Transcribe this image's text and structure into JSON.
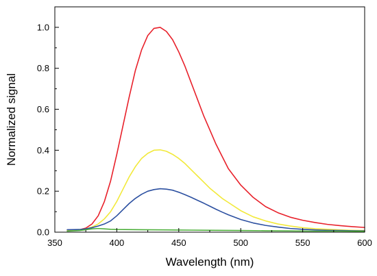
{
  "chart_data": {
    "type": "line",
    "title": "",
    "xlabel": "Wavelength (nm)",
    "ylabel": "Normalized signal",
    "xlim": [
      350,
      600
    ],
    "ylim": [
      0.0,
      1.1
    ],
    "x_ticks": [
      350,
      400,
      450,
      500,
      550,
      600
    ],
    "x_tick_labels": [
      "350",
      "400",
      "450",
      "500",
      "550",
      "600"
    ],
    "y_ticks": [
      0.0,
      0.2,
      0.4,
      0.6,
      0.8,
      1.0
    ],
    "y_tick_labels": [
      "0.0",
      "0.2",
      "0.4",
      "0.6",
      "0.8",
      "1.0"
    ],
    "grid": false,
    "legend": "none",
    "series": [
      {
        "color": "#e8202a",
        "x": [
          360,
          370,
          375,
          380,
          385,
          390,
          395,
          400,
          405,
          410,
          415,
          420,
          425,
          430,
          435,
          440,
          445,
          450,
          455,
          460,
          465,
          470,
          475,
          480,
          485,
          490,
          495,
          500,
          510,
          520,
          530,
          540,
          550,
          560,
          570,
          580,
          590,
          600
        ],
        "values": [
          0.01,
          0.012,
          0.02,
          0.04,
          0.08,
          0.15,
          0.25,
          0.38,
          0.52,
          0.66,
          0.79,
          0.89,
          0.96,
          0.995,
          1.0,
          0.98,
          0.94,
          0.88,
          0.81,
          0.73,
          0.65,
          0.57,
          0.5,
          0.43,
          0.37,
          0.31,
          0.27,
          0.23,
          0.17,
          0.125,
          0.095,
          0.073,
          0.058,
          0.047,
          0.038,
          0.032,
          0.027,
          0.023
        ]
      },
      {
        "color": "#f2e93a",
        "x": [
          360,
          370,
          375,
          380,
          385,
          390,
          395,
          400,
          405,
          410,
          415,
          420,
          425,
          430,
          435,
          440,
          445,
          450,
          455,
          460,
          465,
          470,
          475,
          480,
          485,
          490,
          500,
          510,
          520,
          530,
          540,
          550,
          560,
          570,
          580,
          590,
          600
        ],
        "values": [
          0.01,
          0.012,
          0.016,
          0.025,
          0.04,
          0.065,
          0.1,
          0.15,
          0.21,
          0.27,
          0.32,
          0.36,
          0.385,
          0.4,
          0.402,
          0.395,
          0.38,
          0.36,
          0.335,
          0.305,
          0.275,
          0.245,
          0.215,
          0.19,
          0.165,
          0.145,
          0.105,
          0.075,
          0.055,
          0.04,
          0.03,
          0.022,
          0.017,
          0.014,
          0.011,
          0.009,
          0.008
        ]
      },
      {
        "color": "#2b4fa0",
        "x": [
          360,
          370,
          375,
          380,
          385,
          390,
          395,
          400,
          405,
          410,
          415,
          420,
          425,
          430,
          435,
          440,
          445,
          450,
          455,
          460,
          465,
          470,
          475,
          480,
          485,
          490,
          500,
          510,
          520,
          530,
          540,
          550,
          560,
          570,
          580,
          590,
          600
        ],
        "values": [
          0.012,
          0.013,
          0.016,
          0.022,
          0.03,
          0.04,
          0.055,
          0.08,
          0.11,
          0.14,
          0.165,
          0.185,
          0.2,
          0.208,
          0.212,
          0.21,
          0.205,
          0.195,
          0.183,
          0.17,
          0.156,
          0.142,
          0.127,
          0.112,
          0.098,
          0.085,
          0.062,
          0.045,
          0.033,
          0.025,
          0.018,
          0.014,
          0.011,
          0.009,
          0.008,
          0.007,
          0.006
        ]
      },
      {
        "color": "#4caf3a",
        "x": [
          360,
          370,
          375,
          380,
          385,
          390,
          395,
          400,
          420,
          440,
          460,
          480,
          500,
          520,
          540,
          560,
          580,
          600
        ],
        "values": [
          0.005,
          0.008,
          0.012,
          0.016,
          0.018,
          0.016,
          0.014,
          0.013,
          0.012,
          0.011,
          0.01,
          0.009,
          0.008,
          0.007,
          0.006,
          0.005,
          0.005,
          0.004
        ]
      }
    ]
  }
}
